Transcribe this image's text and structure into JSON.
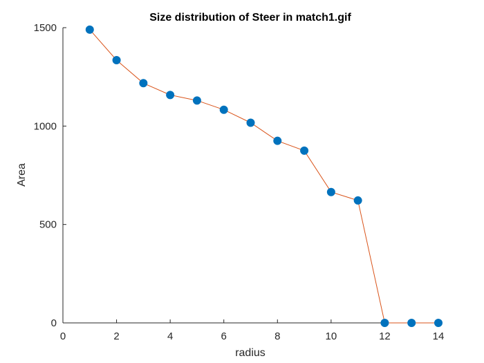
{
  "chart_data": {
    "type": "line",
    "title": "Size distribution of Steer in match1.gif",
    "xlabel": "radius",
    "ylabel": "Area",
    "xlim": [
      0,
      14
    ],
    "ylim": [
      0,
      1500
    ],
    "xticks": [
      0,
      2,
      4,
      6,
      8,
      10,
      12,
      14
    ],
    "yticks": [
      0,
      500,
      1000,
      1500
    ],
    "grid": false,
    "series": [
      {
        "x": [
          1,
          2,
          3,
          4,
          5,
          6,
          7,
          8,
          9,
          10,
          11,
          12,
          13,
          14
        ],
        "values": [
          1490,
          1335,
          1218,
          1158,
          1130,
          1083,
          1017,
          925,
          875,
          665,
          622,
          0,
          0,
          0
        ],
        "line_color": "#d95319",
        "marker_color": "#0072bd"
      }
    ]
  }
}
